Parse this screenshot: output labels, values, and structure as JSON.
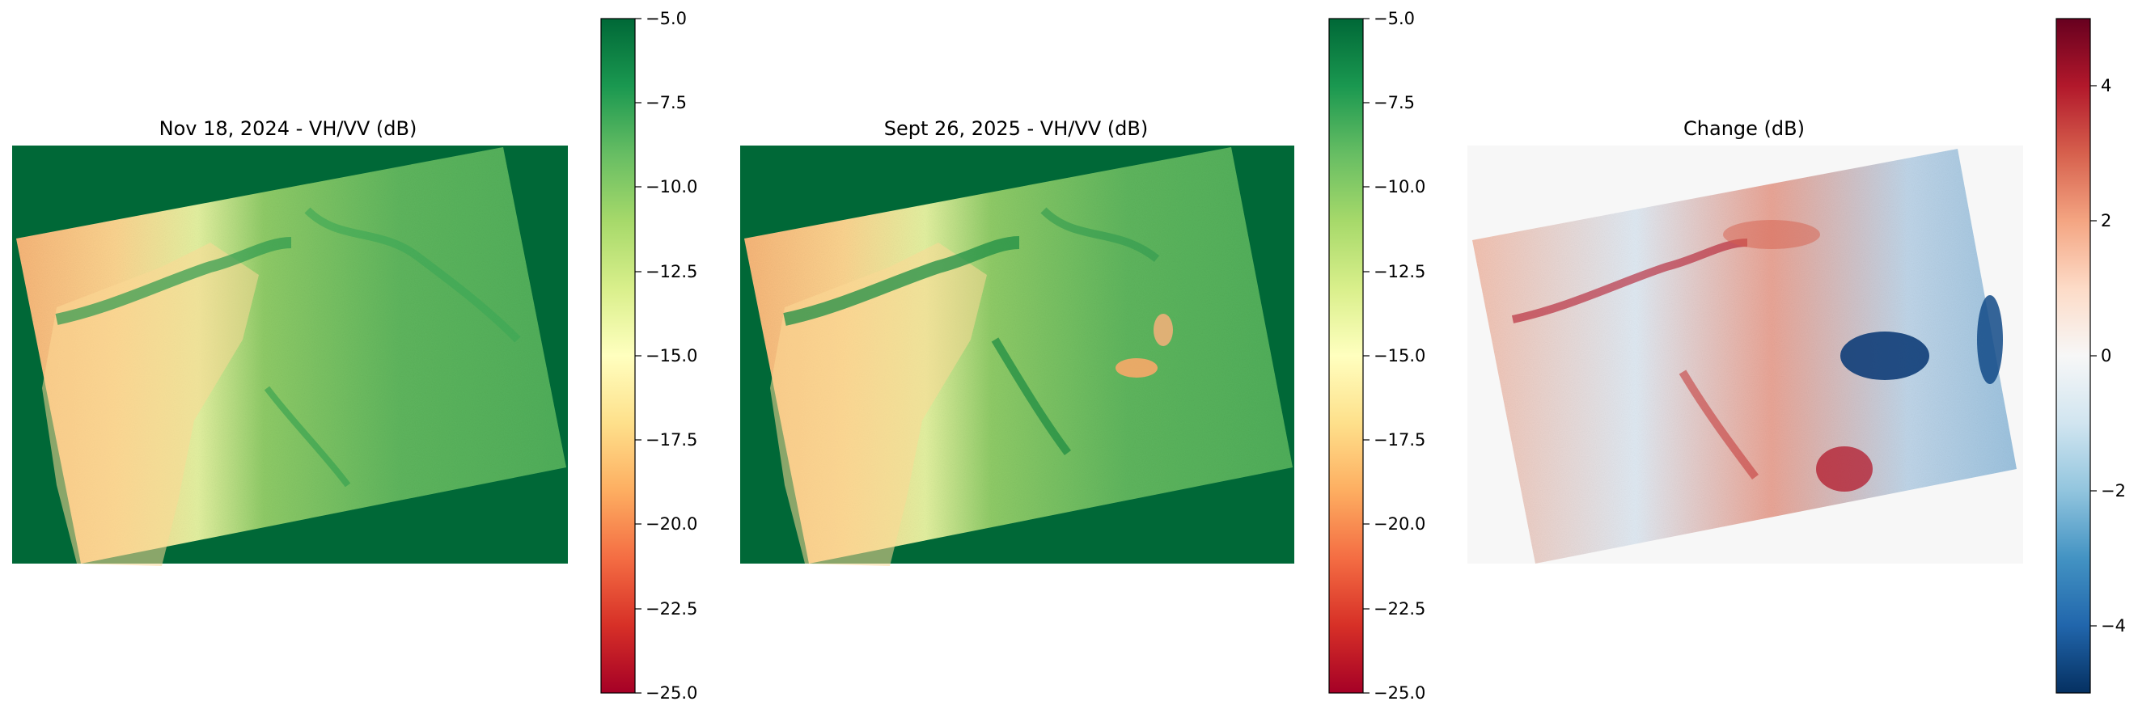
{
  "figure": {
    "panels": [
      {
        "title": "Nov 18, 2024 - VH/VV (dB)"
      },
      {
        "title": "Sept 26, 2025 - VH/VV (dB)"
      },
      {
        "title": "Change (dB)"
      }
    ],
    "colorbars": [
      {
        "colormap": "RdYlGn",
        "vmin": -25,
        "vmax": -5,
        "tick_labels": [
          "−5.0",
          "−7.5",
          "−10.0",
          "−12.5",
          "−15.0",
          "−17.5",
          "−20.0",
          "−22.5",
          "−25.0"
        ]
      },
      {
        "colormap": "RdYlGn",
        "vmin": -25,
        "vmax": -5,
        "tick_labels": [
          "−5.0",
          "−7.5",
          "−10.0",
          "−12.5",
          "−15.0",
          "−17.5",
          "−20.0",
          "−22.5",
          "−25.0"
        ]
      },
      {
        "colormap": "RdBu_r",
        "vmin": -5,
        "vmax": 5,
        "tick_labels": [
          "4",
          "2",
          "0",
          "−2",
          "−4"
        ]
      }
    ],
    "colors": {
      "green_dark": "#006837",
      "green_mid": "#4db259",
      "green_light": "#a6d96a",
      "yellow": "#ffffbf",
      "orange": "#fdae61",
      "red": "#d73027",
      "dark_red": "#a50026",
      "blue_dark": "#053061",
      "blue_mid": "#4393c3",
      "neutral": "#f7f7f7",
      "red_div": "#b2182b"
    }
  }
}
